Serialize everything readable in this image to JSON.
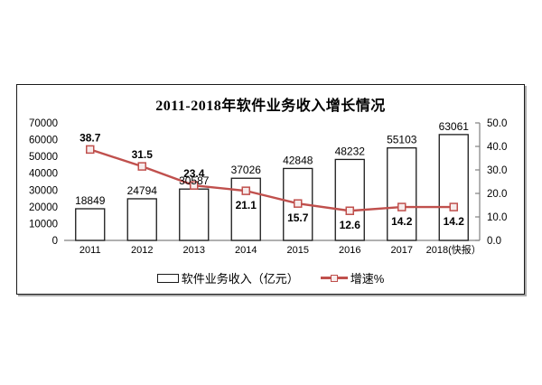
{
  "chart_data": {
    "type": "combo",
    "title": "2011-2018年软件业务收入增长情况",
    "categories": [
      "2011",
      "2012",
      "2013",
      "2014",
      "2015",
      "2016",
      "2017",
      "2018(快报）"
    ],
    "series": [
      {
        "name": "软件业务收入（亿元）",
        "chart": "bar",
        "axis": "left",
        "values": [
          18849,
          24794,
          30587,
          37026,
          42848,
          48232,
          55103,
          63061
        ]
      },
      {
        "name": "增速%",
        "chart": "line",
        "axis": "right",
        "values": [
          38.7,
          31.5,
          23.4,
          21.1,
          15.7,
          12.6,
          14.2,
          14.2
        ],
        "label_positions": [
          "above",
          "above",
          "above",
          "below",
          "below",
          "below",
          "below",
          "below"
        ]
      }
    ],
    "left_axis": {
      "min": 0,
      "max": 70000,
      "ticks": [
        "0",
        "10000",
        "20000",
        "30000",
        "40000",
        "50000",
        "60000",
        "70000"
      ]
    },
    "right_axis": {
      "min": 0,
      "max": 50,
      "ticks": [
        "0.0",
        "10.0",
        "20.0",
        "30.0",
        "40.0",
        "50.0"
      ]
    },
    "legend_position": "bottom",
    "grid": false,
    "colors": {
      "line": "#c0504d",
      "marker_fill": "#f7ecec",
      "bar_fill": "#ffffff",
      "bar_border": "#1a1a1a",
      "axis": "#808080",
      "text": "#000000"
    }
  }
}
